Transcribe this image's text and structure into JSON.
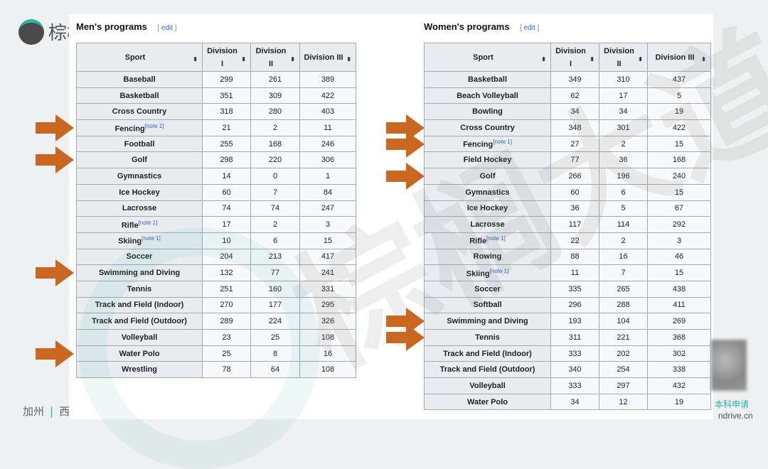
{
  "brand": {
    "logo_text": "棕榈",
    "footer_left": "加州",
    "footer_right": "西",
    "watermark": "棕榈大道",
    "qr_label": "本科申请",
    "qr_url": "ndrive.cn",
    "accent_color": "#2bb39f",
    "arrow_color": "#c9661f"
  },
  "men": {
    "title": "Men's programs",
    "edit_label": "edit",
    "headers": [
      "Sport",
      "Division I",
      "Division II",
      "Division III"
    ],
    "rows": [
      {
        "sport": "Baseball",
        "note": "",
        "d1": "299",
        "d2": "261",
        "d3": "389"
      },
      {
        "sport": "Basketball",
        "note": "",
        "d1": "351",
        "d2": "309",
        "d3": "422"
      },
      {
        "sport": "Cross Country",
        "note": "",
        "d1": "318",
        "d2": "280",
        "d3": "403"
      },
      {
        "sport": "Fencing",
        "note": "[note 1]",
        "d1": "21",
        "d2": "2",
        "d3": "11",
        "highlighted": true
      },
      {
        "sport": "Football",
        "note": "",
        "d1": "255",
        "d2": "168",
        "d3": "246"
      },
      {
        "sport": "Golf",
        "note": "",
        "d1": "298",
        "d2": "220",
        "d3": "306",
        "highlighted": true
      },
      {
        "sport": "Gymnastics",
        "note": "",
        "d1": "14",
        "d2": "0",
        "d3": "1"
      },
      {
        "sport": "Ice Hockey",
        "note": "",
        "d1": "60",
        "d2": "7",
        "d3": "84"
      },
      {
        "sport": "Lacrosse",
        "note": "",
        "d1": "74",
        "d2": "74",
        "d3": "247"
      },
      {
        "sport": "Rifle",
        "note": "[note 1]",
        "d1": "17",
        "d2": "2",
        "d3": "3"
      },
      {
        "sport": "Skiing",
        "note": "[note 1]",
        "d1": "10",
        "d2": "6",
        "d3": "15"
      },
      {
        "sport": "Soccer",
        "note": "",
        "d1": "204",
        "d2": "213",
        "d3": "417"
      },
      {
        "sport": "Swimming and Diving",
        "note": "",
        "d1": "132",
        "d2": "77",
        "d3": "241",
        "highlighted": true
      },
      {
        "sport": "Tennis",
        "note": "",
        "d1": "251",
        "d2": "160",
        "d3": "331"
      },
      {
        "sport": "Track and Field (Indoor)",
        "note": "",
        "d1": "270",
        "d2": "177",
        "d3": "295"
      },
      {
        "sport": "Track and Field (Outdoor)",
        "note": "",
        "d1": "289",
        "d2": "224",
        "d3": "326"
      },
      {
        "sport": "Volleyball",
        "note": "",
        "d1": "23",
        "d2": "25",
        "d3": "108"
      },
      {
        "sport": "Water Polo",
        "note": "",
        "d1": "25",
        "d2": "8",
        "d3": "16",
        "highlighted": true
      },
      {
        "sport": "Wrestling",
        "note": "",
        "d1": "78",
        "d2": "64",
        "d3": "108"
      }
    ]
  },
  "women": {
    "title": "Women's programs",
    "edit_label": "edit",
    "headers": [
      "Sport",
      "Division I",
      "Division II",
      "Division III"
    ],
    "rows": [
      {
        "sport": "Basketball",
        "note": "",
        "d1": "349",
        "d2": "310",
        "d3": "437"
      },
      {
        "sport": "Beach Volleyball",
        "note": "",
        "d1": "62",
        "d2": "17",
        "d3": "5"
      },
      {
        "sport": "Bowling",
        "note": "",
        "d1": "34",
        "d2": "34",
        "d3": "19"
      },
      {
        "sport": "Cross Country",
        "note": "",
        "d1": "348",
        "d2": "301",
        "d3": "422",
        "highlighted": true
      },
      {
        "sport": "Fencing",
        "note": "[note 1]",
        "d1": "27",
        "d2": "2",
        "d3": "15",
        "highlighted": true
      },
      {
        "sport": "Field Hockey",
        "note": "",
        "d1": "77",
        "d2": "36",
        "d3": "168"
      },
      {
        "sport": "Golf",
        "note": "",
        "d1": "266",
        "d2": "196",
        "d3": "240",
        "highlighted": true
      },
      {
        "sport": "Gymnastics",
        "note": "",
        "d1": "60",
        "d2": "6",
        "d3": "15"
      },
      {
        "sport": "Ice Hockey",
        "note": "",
        "d1": "36",
        "d2": "5",
        "d3": "67"
      },
      {
        "sport": "Lacrosse",
        "note": "",
        "d1": "117",
        "d2": "114",
        "d3": "292"
      },
      {
        "sport": "Rifle",
        "note": "[note 1]",
        "d1": "22",
        "d2": "2",
        "d3": "3"
      },
      {
        "sport": "Rowing",
        "note": "",
        "d1": "88",
        "d2": "16",
        "d3": "46"
      },
      {
        "sport": "Skiing",
        "note": "[note 1]",
        "d1": "11",
        "d2": "7",
        "d3": "15"
      },
      {
        "sport": "Soccer",
        "note": "",
        "d1": "335",
        "d2": "265",
        "d3": "438"
      },
      {
        "sport": "Softball",
        "note": "",
        "d1": "296",
        "d2": "288",
        "d3": "411"
      },
      {
        "sport": "Swimming and Diving",
        "note": "",
        "d1": "193",
        "d2": "104",
        "d3": "269",
        "highlighted": true
      },
      {
        "sport": "Tennis",
        "note": "",
        "d1": "311",
        "d2": "221",
        "d3": "368",
        "highlighted": true
      },
      {
        "sport": "Track and Field (Indoor)",
        "note": "",
        "d1": "333",
        "d2": "202",
        "d3": "302"
      },
      {
        "sport": "Track and Field (Outdoor)",
        "note": "",
        "d1": "340",
        "d2": "254",
        "d3": "338"
      },
      {
        "sport": "Volleyball",
        "note": "",
        "d1": "333",
        "d2": "297",
        "d3": "432"
      },
      {
        "sport": "Water Polo",
        "note": "",
        "d1": "34",
        "d2": "12",
        "d3": "19"
      }
    ]
  }
}
